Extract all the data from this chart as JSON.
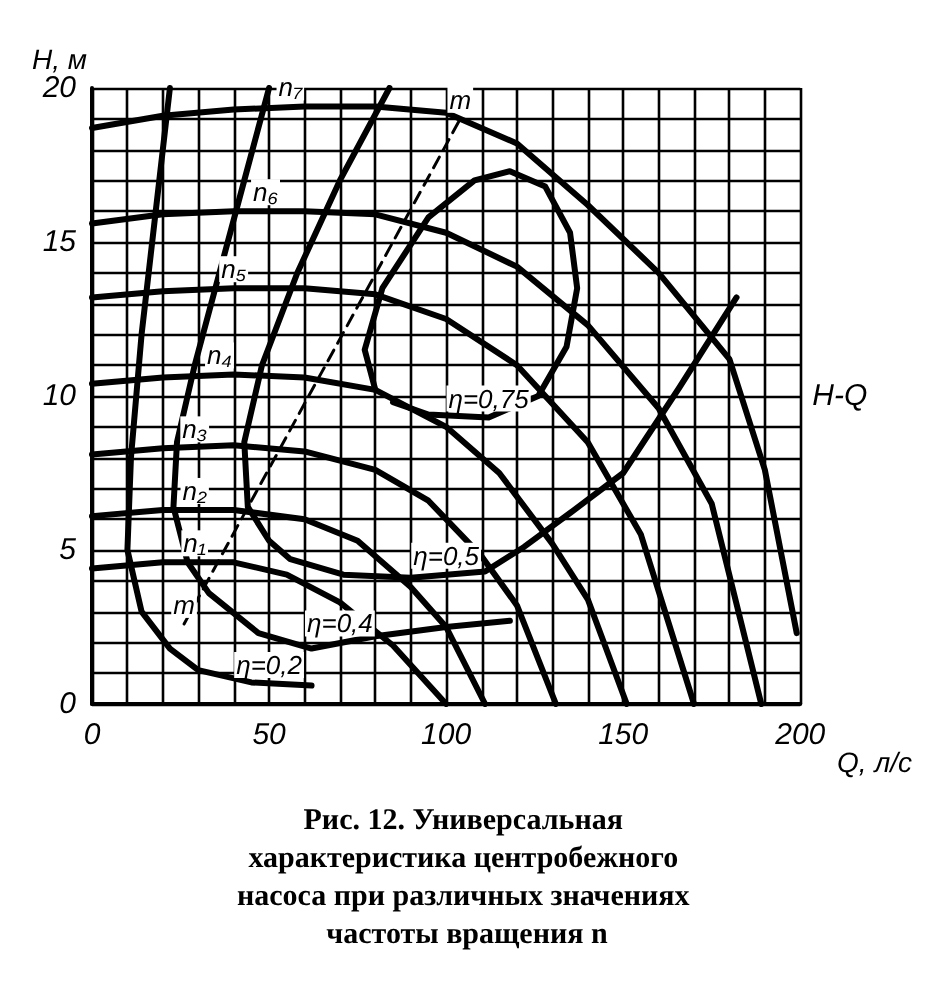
{
  "chart_data": {
    "type": "line",
    "title": "Рис. 12. Универсальная характеристика центробежного насоса при различных значениях частоты вращения n",
    "xlabel": "Q, л/с",
    "ylabel": "H, м",
    "xlim": [
      0,
      200
    ],
    "ylim": [
      0,
      20
    ],
    "xticks": [
      0,
      {
        "value": 10,
        "label": null
      },
      {
        "value": 20,
        "label": null
      },
      {
        "value": 30,
        "label": null
      },
      {
        "value": 40,
        "label": null
      },
      50,
      {
        "value": 60,
        "label": null
      },
      {
        "value": 70,
        "label": null
      },
      {
        "value": 80,
        "label": null
      },
      {
        "value": 90,
        "label": null
      },
      100,
      {
        "value": 110,
        "label": null
      },
      {
        "value": 120,
        "label": null
      },
      {
        "value": 130,
        "label": null
      },
      {
        "value": 140,
        "label": null
      },
      150,
      {
        "value": 160,
        "label": null
      },
      {
        "value": 170,
        "label": null
      },
      {
        "value": 180,
        "label": null
      },
      {
        "value": 190,
        "label": null
      },
      200
    ],
    "yticks": [
      0,
      {
        "value": 1,
        "label": null
      },
      {
        "value": 2,
        "label": null
      },
      {
        "value": 3,
        "label": null
      },
      {
        "value": 4,
        "label": null
      },
      5,
      {
        "value": 6,
        "label": null
      },
      {
        "value": 7,
        "label": null
      },
      {
        "value": 8,
        "label": null
      },
      {
        "value": 9,
        "label": null
      },
      10,
      {
        "value": 11,
        "label": null
      },
      {
        "value": 12,
        "label": null
      },
      {
        "value": 13,
        "label": null
      },
      {
        "value": 14,
        "label": null
      },
      15,
      {
        "value": 16,
        "label": null
      },
      {
        "value": 17,
        "label": null
      },
      {
        "value": 18,
        "label": null
      },
      {
        "value": 19,
        "label": null
      },
      20
    ],
    "grid": true,
    "marker": "none",
    "series": [
      {
        "color": "#000000",
        "x": [
          0,
          20,
          40,
          60,
          80,
          100,
          120,
          140,
          160,
          180,
          190,
          199
        ],
        "values": [
          18.7,
          19.1,
          19.3,
          19.4,
          19.4,
          19.2,
          18.2,
          16.2,
          14.0,
          11.2,
          7.6,
          2.3
        ]
      },
      {
        "color": "#000000",
        "x": [
          0,
          20,
          40,
          60,
          80,
          100,
          120,
          140,
          160,
          175,
          189
        ],
        "values": [
          15.6,
          15.9,
          16.0,
          16.0,
          15.9,
          15.3,
          14.2,
          12.3,
          9.6,
          6.5,
          0
        ]
      },
      {
        "color": "#000000",
        "x": [
          0,
          20,
          40,
          60,
          80,
          100,
          120,
          140,
          155,
          170
        ],
        "values": [
          13.2,
          13.4,
          13.5,
          13.5,
          13.3,
          12.5,
          11.0,
          8.5,
          5.5,
          0
        ]
      },
      {
        "color": "#000000",
        "x": [
          0,
          20,
          40,
          60,
          80,
          100,
          115,
          130,
          140,
          151
        ],
        "values": [
          10.4,
          10.6,
          10.7,
          10.6,
          10.2,
          9.0,
          7.5,
          5.2,
          3.4,
          0
        ]
      },
      {
        "color": "#000000",
        "x": [
          0,
          20,
          40,
          60,
          80,
          95,
          110,
          120,
          131
        ],
        "values": [
          8.1,
          8.3,
          8.4,
          8.2,
          7.6,
          6.6,
          4.8,
          3.2,
          0
        ]
      },
      {
        "color": "#000000",
        "x": [
          0,
          20,
          40,
          60,
          75,
          90,
          100,
          111
        ],
        "values": [
          6.1,
          6.3,
          6.3,
          6.0,
          5.3,
          3.8,
          2.5,
          0
        ]
      },
      {
        "color": "#000000",
        "x": [
          0,
          20,
          40,
          55,
          70,
          85,
          100
        ],
        "values": [
          4.4,
          4.6,
          4.6,
          4.2,
          3.3,
          1.9,
          0
        ]
      },
      {
        "color": "#000000",
        "x": [
          22,
          18,
          14,
          11,
          10,
          14,
          22,
          30,
          45,
          62
        ],
        "values": [
          20,
          16,
          12,
          8,
          5,
          3,
          1.8,
          1.1,
          0.7,
          0.6
        ]
      },
      {
        "color": "#000000",
        "x": [
          50,
          43,
          36,
          29,
          24,
          23,
          27,
          33,
          47,
          62,
          80,
          100,
          118
        ],
        "values": [
          20,
          17,
          14,
          11,
          8.5,
          6.4,
          4.6,
          3.6,
          2.3,
          1.8,
          2.2,
          2.5,
          2.7
        ]
      },
      {
        "color": "#000000",
        "x": [
          84,
          70,
          58,
          48,
          43,
          44,
          50,
          56,
          71,
          90,
          111,
          122,
          135,
          150,
          166,
          182
        ],
        "values": [
          20,
          17,
          14,
          11,
          8.5,
          6.4,
          5.3,
          4.7,
          4.2,
          4.1,
          4.3,
          5.1,
          6.2,
          7.5,
          10.3,
          13.2
        ]
      },
      {
        "color": "#000000",
        "x": [
          80,
          77,
          82,
          95,
          108,
          118,
          128,
          135,
          137,
          134,
          126,
          112,
          95,
          85
        ],
        "values": [
          10.2,
          11.5,
          13.5,
          15.8,
          17.0,
          17.3,
          16.8,
          15.3,
          13.5,
          11.6,
          10.0,
          9.3,
          9.4,
          9.8
        ]
      },
      {
        "color": "#000000",
        "line_style": "dashed",
        "x": [
          26,
          65,
          104
        ],
        "values": [
          2.6,
          10.8,
          19
        ]
      }
    ],
    "annotations": [
      {
        "text": "n₇",
        "x": 56,
        "y": 19.4
      },
      {
        "text": "n₆",
        "x": 49,
        "y": 16.0
      },
      {
        "text": "n₅",
        "x": 40,
        "y": 13.5
      },
      {
        "text": "n₄",
        "x": 36,
        "y": 10.7
      },
      {
        "text": "n₃",
        "x": 29,
        "y": 8.3
      },
      {
        "text": "n₂",
        "x": 29,
        "y": 6.3
      },
      {
        "text": "n₁",
        "x": 29,
        "y": 4.6
      },
      {
        "text": "η=0,75",
        "x": 112,
        "y": 9.3
      },
      {
        "text": "η=0,5",
        "x": 100,
        "y": 4.2
      },
      {
        "text": "η=0,4",
        "x": 70,
        "y": 2.0
      },
      {
        "text": "η=0,2",
        "x": 50,
        "y": 0.65
      },
      {
        "text": "m",
        "x": 104,
        "y": 19
      },
      {
        "text": "m",
        "x": 26,
        "y": 2.6
      },
      "H-Q"
    ]
  }
}
